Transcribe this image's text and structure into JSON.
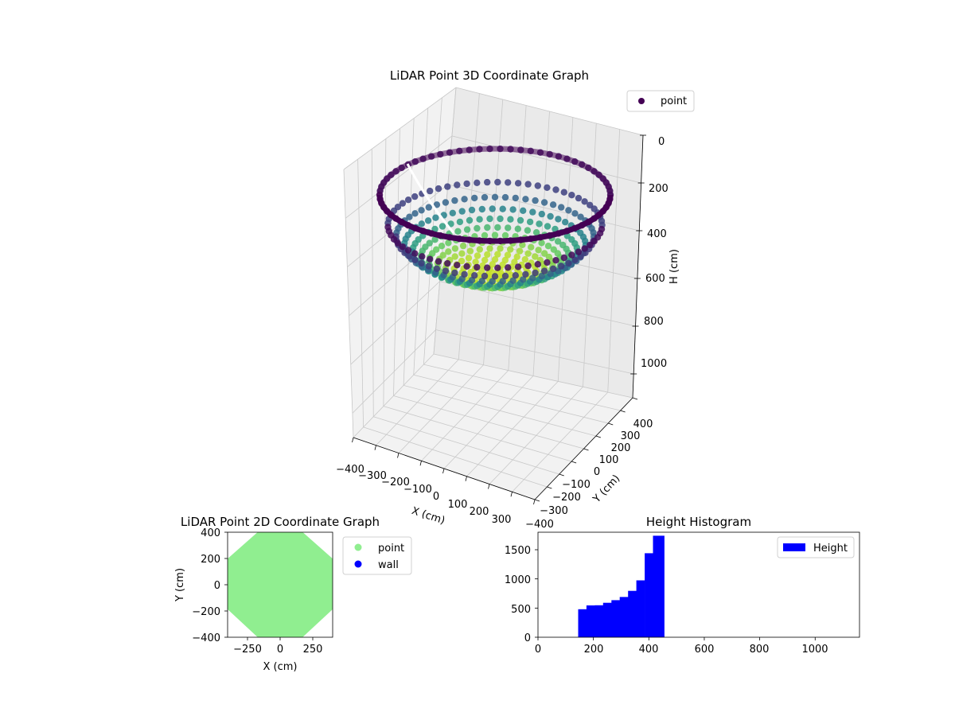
{
  "colors": {
    "pane_back": "#f2f2f2",
    "pane_side": "#eaeaea",
    "pane_floor": "#f2f2f2",
    "grid": "#c8c8c8",
    "viridis_dark": "#440154",
    "viridis_mid": "#21918c",
    "viridis_light": "#b5de2b",
    "point_2d": "#90ee90",
    "wall_2d": "#0000ff",
    "hist_bar": "#0000ff"
  },
  "chart_data": [
    {
      "type": "scatter",
      "subtype": "3d",
      "title": "LiDAR Point 3D Coordinate Graph",
      "xlabel": "X (cm)",
      "ylabel": "Y (cm)",
      "zlabel": "H (cm)",
      "xlim": [
        -400,
        400
      ],
      "ylim": [
        -400,
        400
      ],
      "zlim": [
        0,
        1100
      ],
      "z_inverted": true,
      "x_ticks": [
        "−400",
        "−300",
        "−200",
        "−100",
        "0",
        "100",
        "200",
        "300"
      ],
      "y_ticks": [
        "−400",
        "−300",
        "−200",
        "−100",
        "0",
        "100",
        "200",
        "300",
        "400"
      ],
      "z_ticks": [
        "0",
        "200",
        "400",
        "600",
        "800",
        "1000"
      ],
      "legend": [
        {
          "label": "point",
          "color": "#440154"
        }
      ],
      "legend_position": "upper-right",
      "colormap": "viridis",
      "grid": true,
      "shape": "hemispherical bowl, radius ~400, center height ~450, rim height ~150"
    },
    {
      "type": "scatter",
      "title": "LiDAR Point 2D Coordinate Graph",
      "xlabel": "X (cm)",
      "ylabel": "Y (cm)",
      "xlim": [
        -400,
        400
      ],
      "ylim": [
        -400,
        400
      ],
      "x_ticks": [
        "−250",
        "0",
        "250"
      ],
      "y_ticks": [
        "−400",
        "−200",
        "0",
        "200",
        "400"
      ],
      "series": [
        {
          "name": "point",
          "color": "#90ee90",
          "shape": "filled octagon, radius ~400"
        },
        {
          "name": "wall",
          "color": "#0000ff",
          "points": []
        }
      ],
      "legend_position": "outside-right"
    },
    {
      "type": "bar",
      "subtype": "histogram",
      "title": "Height Histogram",
      "legend": [
        {
          "label": "Height",
          "color": "#0000ff"
        }
      ],
      "legend_position": "upper-right",
      "xlim": [
        0,
        1160
      ],
      "ylim": [
        0,
        1800
      ],
      "x_ticks": [
        "0",
        "200",
        "400",
        "600",
        "800",
        "1000"
      ],
      "y_ticks": [
        "0",
        "500",
        "1000",
        "1500"
      ],
      "bins": [
        {
          "start": 145,
          "end": 175,
          "count": 480
        },
        {
          "start": 175,
          "end": 205,
          "count": 545
        },
        {
          "start": 205,
          "end": 235,
          "count": 548
        },
        {
          "start": 235,
          "end": 265,
          "count": 590
        },
        {
          "start": 265,
          "end": 295,
          "count": 635
        },
        {
          "start": 295,
          "end": 325,
          "count": 690
        },
        {
          "start": 325,
          "end": 355,
          "count": 795
        },
        {
          "start": 355,
          "end": 385,
          "count": 975
        },
        {
          "start": 385,
          "end": 415,
          "count": 1440
        },
        {
          "start": 415,
          "end": 445,
          "count": 1740
        },
        {
          "start": 445,
          "end": 455,
          "count": 1740
        }
      ]
    }
  ]
}
